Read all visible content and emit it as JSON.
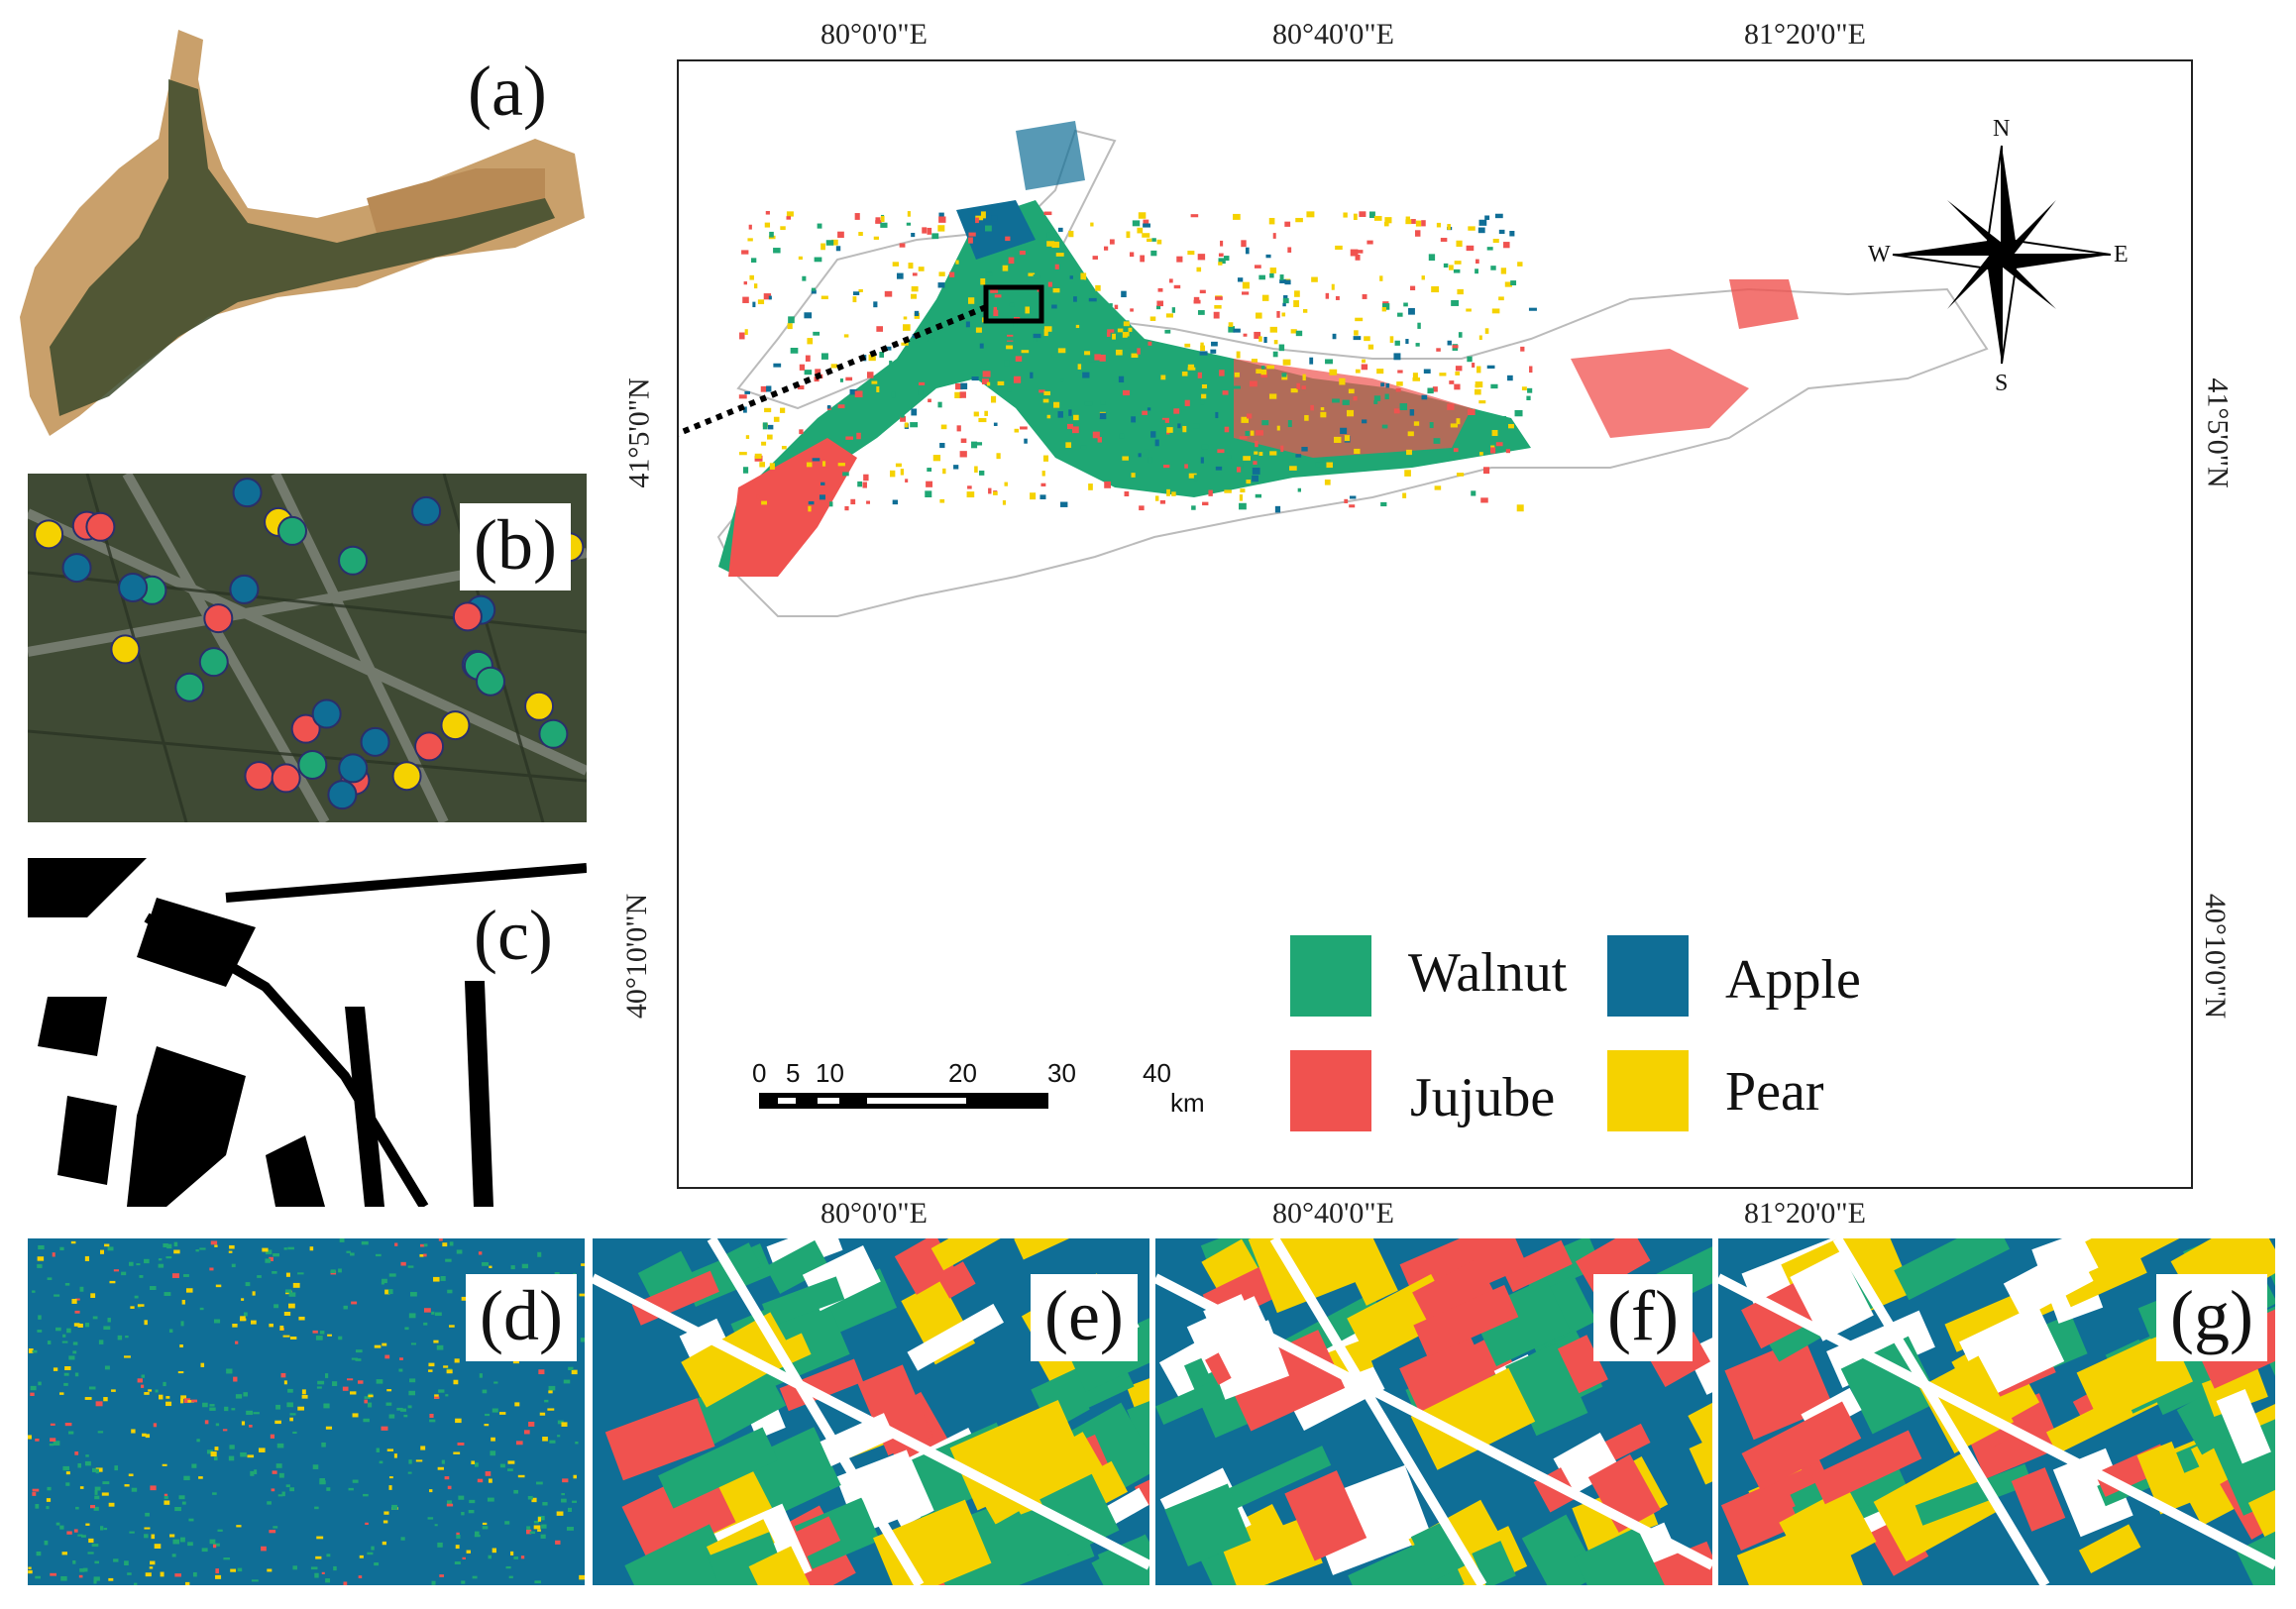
{
  "panels": {
    "a": "(a)",
    "b": "(b)",
    "c": "(c)",
    "d": "(d)",
    "e": "(e)",
    "f": "(f)",
    "g": "(g)"
  },
  "map": {
    "lon_top": [
      "80°0'0\"E",
      "80°40'0\"E",
      "81°20'0\"E"
    ],
    "lon_bottom": [
      "80°0'0\"E",
      "80°40'0\"E",
      "81°20'0\"E"
    ],
    "lat_left": [
      "41°5'0\"N",
      "40°10'0\"N"
    ],
    "lat_right": [
      "41°5'0\"N",
      "40°10'0\"N"
    ],
    "compass": {
      "n": "N",
      "s": "S",
      "e": "E",
      "w": "W"
    },
    "scale_bar": {
      "ticks": [
        "0",
        "5",
        "10",
        "20",
        "30",
        "40"
      ],
      "unit": "km"
    }
  },
  "legend": [
    {
      "label": "Walnut",
      "color": "#1fa774"
    },
    {
      "label": "Apple",
      "color": "#0f6e96"
    },
    {
      "label": "Jujube",
      "color": "#f0524f"
    },
    {
      "label": "Pear",
      "color": "#f5d200"
    }
  ],
  "colors": {
    "walnut": "#1fa774",
    "apple": "#0f6e96",
    "jujube": "#f0524f",
    "pear": "#f5d200",
    "satellite": "#3c4a2c",
    "desert": "#c9a06b"
  }
}
